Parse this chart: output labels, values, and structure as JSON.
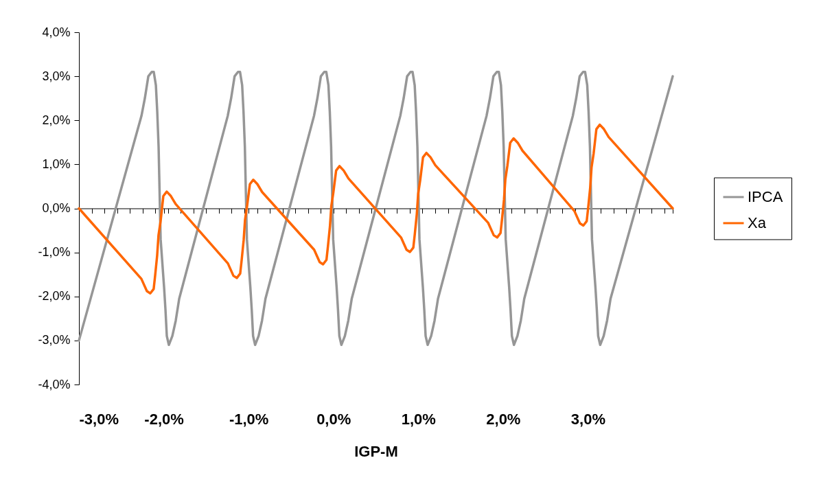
{
  "chart_data": {
    "type": "line",
    "xlabel": "IGP-M",
    "legend": "right",
    "xlim": [
      -3,
      4
    ],
    "ylim": [
      -4,
      4
    ],
    "xticks": [
      {
        "value": -3,
        "label": "-3,0%"
      },
      {
        "value": -2,
        "label": "-2,0%"
      },
      {
        "value": -1,
        "label": "-1,0%"
      },
      {
        "value": 0,
        "label": "0,0%"
      },
      {
        "value": 1,
        "label": "1,0%"
      },
      {
        "value": 2,
        "label": "2,0%"
      },
      {
        "value": 3,
        "label": "3,0%"
      },
      {
        "value": -2.85,
        "label": null
      },
      {
        "value": -2.7,
        "label": null
      },
      {
        "value": -2.55,
        "label": null
      },
      {
        "value": -2.4,
        "label": null
      },
      {
        "value": -2.25,
        "label": null
      },
      {
        "value": -2.1,
        "label": null
      },
      {
        "value": -1.95,
        "label": null
      },
      {
        "value": -1.8,
        "label": null
      },
      {
        "value": -1.65,
        "label": null
      },
      {
        "value": -1.5,
        "label": null
      },
      {
        "value": -1.35,
        "label": null
      },
      {
        "value": -1.2,
        "label": null
      },
      {
        "value": -1.05,
        "label": null
      },
      {
        "value": -0.9,
        "label": null
      },
      {
        "value": -0.75,
        "label": null
      },
      {
        "value": -0.6,
        "label": null
      },
      {
        "value": -0.45,
        "label": null
      },
      {
        "value": -0.3,
        "label": null
      },
      {
        "value": -0.15,
        "label": null
      },
      {
        "value": 0.15,
        "label": null
      },
      {
        "value": 0.3,
        "label": null
      },
      {
        "value": 0.45,
        "label": null
      },
      {
        "value": 0.6,
        "label": null
      },
      {
        "value": 0.75,
        "label": null
      },
      {
        "value": 0.9,
        "label": null
      },
      {
        "value": 1.05,
        "label": null
      },
      {
        "value": 1.2,
        "label": null
      },
      {
        "value": 1.35,
        "label": null
      },
      {
        "value": 1.5,
        "label": null
      },
      {
        "value": 1.65,
        "label": null
      },
      {
        "value": 1.8,
        "label": null
      },
      {
        "value": 1.95,
        "label": null
      },
      {
        "value": 2.1,
        "label": null
      },
      {
        "value": 2.25,
        "label": null
      },
      {
        "value": 2.4,
        "label": null
      },
      {
        "value": 2.55,
        "label": null
      },
      {
        "value": 2.7,
        "label": null
      },
      {
        "value": 2.85,
        "label": null
      },
      {
        "value": 3.15,
        "label": null
      },
      {
        "value": 3.3,
        "label": null
      },
      {
        "value": 3.45,
        "label": null
      },
      {
        "value": 3.6,
        "label": null
      },
      {
        "value": 3.75,
        "label": null
      },
      {
        "value": 3.9,
        "label": null
      },
      {
        "value": 4,
        "label": null
      }
    ],
    "yticks": [
      {
        "value": -4,
        "label": "-4,0%"
      },
      {
        "value": -3,
        "label": "-3,0%"
      },
      {
        "value": -2,
        "label": "-2,0%"
      },
      {
        "value": -1,
        "label": "-1,0%"
      },
      {
        "value": 0,
        "label": "0,0%"
      },
      {
        "value": 1,
        "label": "1,0%"
      },
      {
        "value": 2,
        "label": "2,0%"
      },
      {
        "value": 3,
        "label": "3,0%"
      },
      {
        "value": 4,
        "label": "4,0%"
      }
    ],
    "series": [
      {
        "name": "IPCA",
        "color": "#969696",
        "x": [
          -3,
          -2.263,
          -2.223,
          -2.182,
          -2.142,
          -2.118,
          -2.093,
          -2.077,
          -2.061,
          -2.037,
          -1.996,
          -1.98,
          -1.964,
          -1.94,
          -1.899,
          -1.859,
          -1.818,
          -1.246,
          -1.206,
          -1.165,
          -1.125,
          -1.101,
          -1.076,
          -1.06,
          -1.044,
          -1.02,
          -0.979,
          -0.963,
          -0.947,
          -0.923,
          -0.882,
          -0.842,
          -0.801,
          -0.229,
          -0.189,
          -0.148,
          -0.108,
          -0.084,
          -0.059,
          -0.043,
          -0.027,
          -0.003,
          0.038,
          0.054,
          0.07,
          0.094,
          0.135,
          0.175,
          0.216,
          0.788,
          0.828,
          0.869,
          0.909,
          0.933,
          0.958,
          0.974,
          0.99,
          1.014,
          1.055,
          1.071,
          1.087,
          1.111,
          1.152,
          1.192,
          1.233,
          1.805,
          1.845,
          1.886,
          1.926,
          1.95,
          1.975,
          1.991,
          2.007,
          2.031,
          2.072,
          2.088,
          2.104,
          2.128,
          2.169,
          2.209,
          2.25,
          2.822,
          2.862,
          2.903,
          2.943,
          2.967,
          2.992,
          3.008,
          3.024,
          3.048,
          3.089,
          3.105,
          3.121,
          3.145,
          3.186,
          3.226,
          3.267,
          4
        ],
        "values": [
          -3,
          2.1,
          2.5,
          3.0,
          3.1,
          3.1,
          2.8,
          2.2,
          1.4,
          -0.7,
          -1.8,
          -2.3,
          -2.9,
          -3.1,
          -2.9,
          -2.55,
          -2.05,
          2.1,
          2.5,
          3.0,
          3.1,
          3.1,
          2.8,
          2.2,
          1.4,
          -0.7,
          -1.8,
          -2.3,
          -2.9,
          -3.1,
          -2.9,
          -2.55,
          -2.05,
          2.1,
          2.5,
          3.0,
          3.1,
          3.1,
          2.8,
          2.2,
          1.4,
          -0.7,
          -1.8,
          -2.3,
          -2.9,
          -3.1,
          -2.9,
          -2.55,
          -2.05,
          2.1,
          2.5,
          3.0,
          3.1,
          3.1,
          2.8,
          2.2,
          1.4,
          -0.7,
          -1.8,
          -2.3,
          -2.9,
          -3.1,
          -2.9,
          -2.55,
          -2.05,
          2.1,
          2.5,
          3.0,
          3.1,
          3.1,
          2.8,
          2.2,
          1.4,
          -0.7,
          -1.8,
          -2.3,
          -2.9,
          -3.1,
          -2.9,
          -2.55,
          -2.05,
          2.1,
          2.5,
          3.0,
          3.1,
          3.1,
          2.8,
          2.2,
          1.4,
          -0.7,
          -1.8,
          -2.3,
          -2.9,
          -3.1,
          -2.9,
          -2.55,
          -2.05,
          3.0
        ]
      },
      {
        "name": "Xa",
        "color": "#ff6600",
        "x": [
          -3,
          -2.264,
          -2.199,
          -2.159,
          -2.119,
          -2.102,
          -2.078,
          -2.062,
          -2.038,
          -2.005,
          -1.965,
          -1.916,
          -1.86,
          -1.244,
          -1.179,
          -1.139,
          -1.099,
          -1.082,
          -1.058,
          -1.042,
          -1.018,
          -0.985,
          -0.945,
          -0.896,
          -0.84,
          -0.227,
          -0.162,
          -0.122,
          -0.082,
          -0.065,
          -0.041,
          -0.025,
          -0.001,
          0.032,
          0.072,
          0.121,
          0.177,
          0.797,
          0.862,
          0.902,
          0.942,
          0.959,
          0.983,
          0.999,
          1.023,
          1.056,
          1.096,
          1.145,
          1.201,
          1.825,
          1.89,
          1.93,
          1.97,
          1.987,
          2.011,
          2.027,
          2.051,
          2.084,
          2.124,
          2.173,
          2.229,
          2.841,
          2.906,
          2.946,
          2.986,
          3.003,
          3.027,
          3.043,
          3.067,
          3.1,
          3.14,
          3.189,
          3.245,
          4
        ],
        "values": [
          0,
          -1.6,
          -1.88,
          -1.93,
          -1.83,
          -1.53,
          -1.07,
          -0.61,
          -0.3,
          0.28,
          0.38,
          0.28,
          0.1,
          -1.25,
          -1.53,
          -1.58,
          -1.48,
          -1.18,
          -0.72,
          -0.26,
          0.05,
          0.55,
          0.65,
          0.55,
          0.37,
          -0.94,
          -1.22,
          -1.27,
          -1.17,
          -0.87,
          -0.41,
          0.05,
          0.36,
          0.86,
          0.96,
          0.86,
          0.68,
          -0.66,
          -0.94,
          -0.99,
          -0.89,
          -0.59,
          -0.13,
          0.33,
          0.64,
          1.16,
          1.26,
          1.16,
          0.98,
          -0.33,
          -0.61,
          -0.66,
          -0.56,
          -0.26,
          0.2,
          0.66,
          0.97,
          1.49,
          1.59,
          1.49,
          1.31,
          -0.06,
          -0.34,
          -0.39,
          -0.29,
          0.01,
          0.47,
          0.93,
          1.24,
          1.8,
          1.9,
          1.8,
          1.62,
          0
        ]
      }
    ]
  }
}
